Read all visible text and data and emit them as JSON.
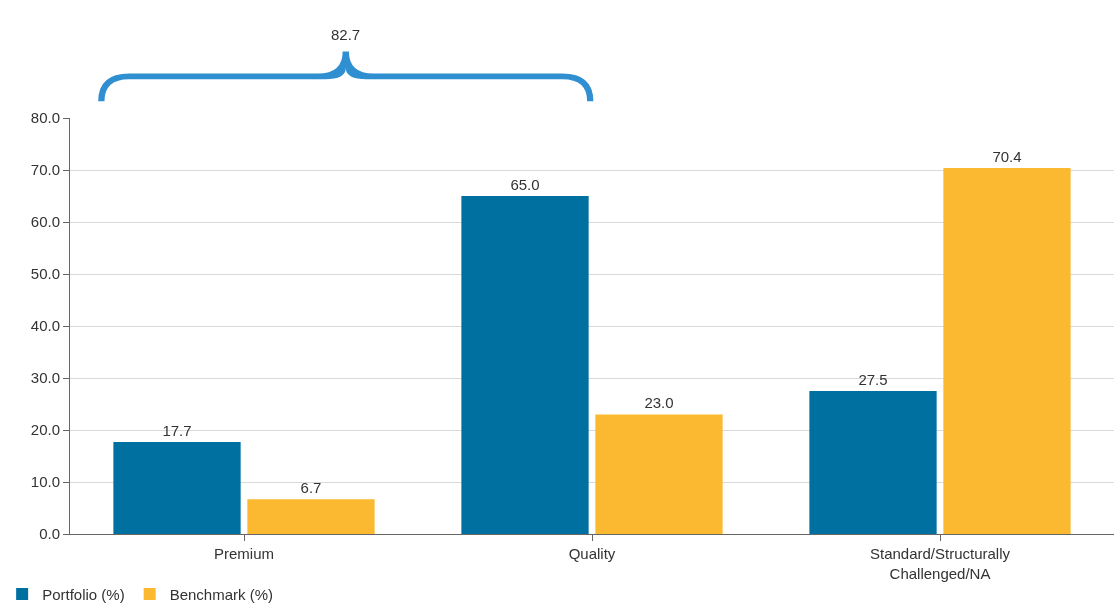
{
  "chart_data": {
    "type": "bar",
    "categories": [
      "Premium",
      "Quality",
      "Standard/Structurally Challenged/NA"
    ],
    "series": [
      {
        "name": "Portfolio (%)",
        "color": "#0070a0",
        "values": [
          17.7,
          65.0,
          27.5
        ],
        "value_labels": [
          "17.7",
          "65.0",
          "27.5"
        ]
      },
      {
        "name": "Benchmark (%)",
        "color": "#fbb931",
        "values": [
          6.7,
          23.0,
          70.4
        ],
        "value_labels": [
          "6.7",
          "23.0",
          "70.4"
        ]
      }
    ],
    "ylim": [
      0,
      80
    ],
    "yticks": [
      {
        "value": 0,
        "label": "0.0"
      },
      {
        "value": 10,
        "label": "10.0"
      },
      {
        "value": 20,
        "label": "20.0"
      },
      {
        "value": 30,
        "label": "30.0"
      },
      {
        "value": 40,
        "label": "40.0"
      },
      {
        "value": 50,
        "label": "50.0"
      },
      {
        "value": 60,
        "label": "60.0"
      },
      {
        "value": 70,
        "label": "70.0"
      },
      {
        "value": 80,
        "label": "80.0"
      }
    ],
    "annotations": [
      "82.7"
    ],
    "grid": "y",
    "legend": "bottom left"
  }
}
